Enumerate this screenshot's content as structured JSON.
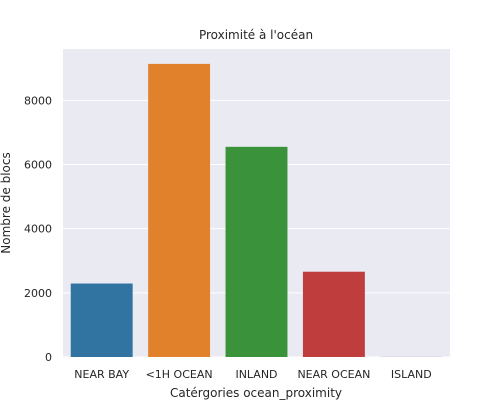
{
  "chart_data": {
    "type": "bar",
    "title": "Proximité à l'océan",
    "xlabel": "Catérgories ocean_proximity",
    "ylabel": "Nombre de blocs",
    "categories": [
      "NEAR BAY",
      "<1H OCEAN",
      "INLAND",
      "NEAR OCEAN",
      "ISLAND"
    ],
    "values": [
      2290,
      9136,
      6551,
      2658,
      5
    ],
    "colors": [
      "#3274a1",
      "#e1812c",
      "#3a923a",
      "#c03d3e",
      "#9372b2"
    ],
    "yticks": [
      "0",
      "2000",
      "4000",
      "6000",
      "8000"
    ],
    "ylim": [
      0,
      9600
    ],
    "grid": true,
    "background": "#eaeaf2"
  }
}
